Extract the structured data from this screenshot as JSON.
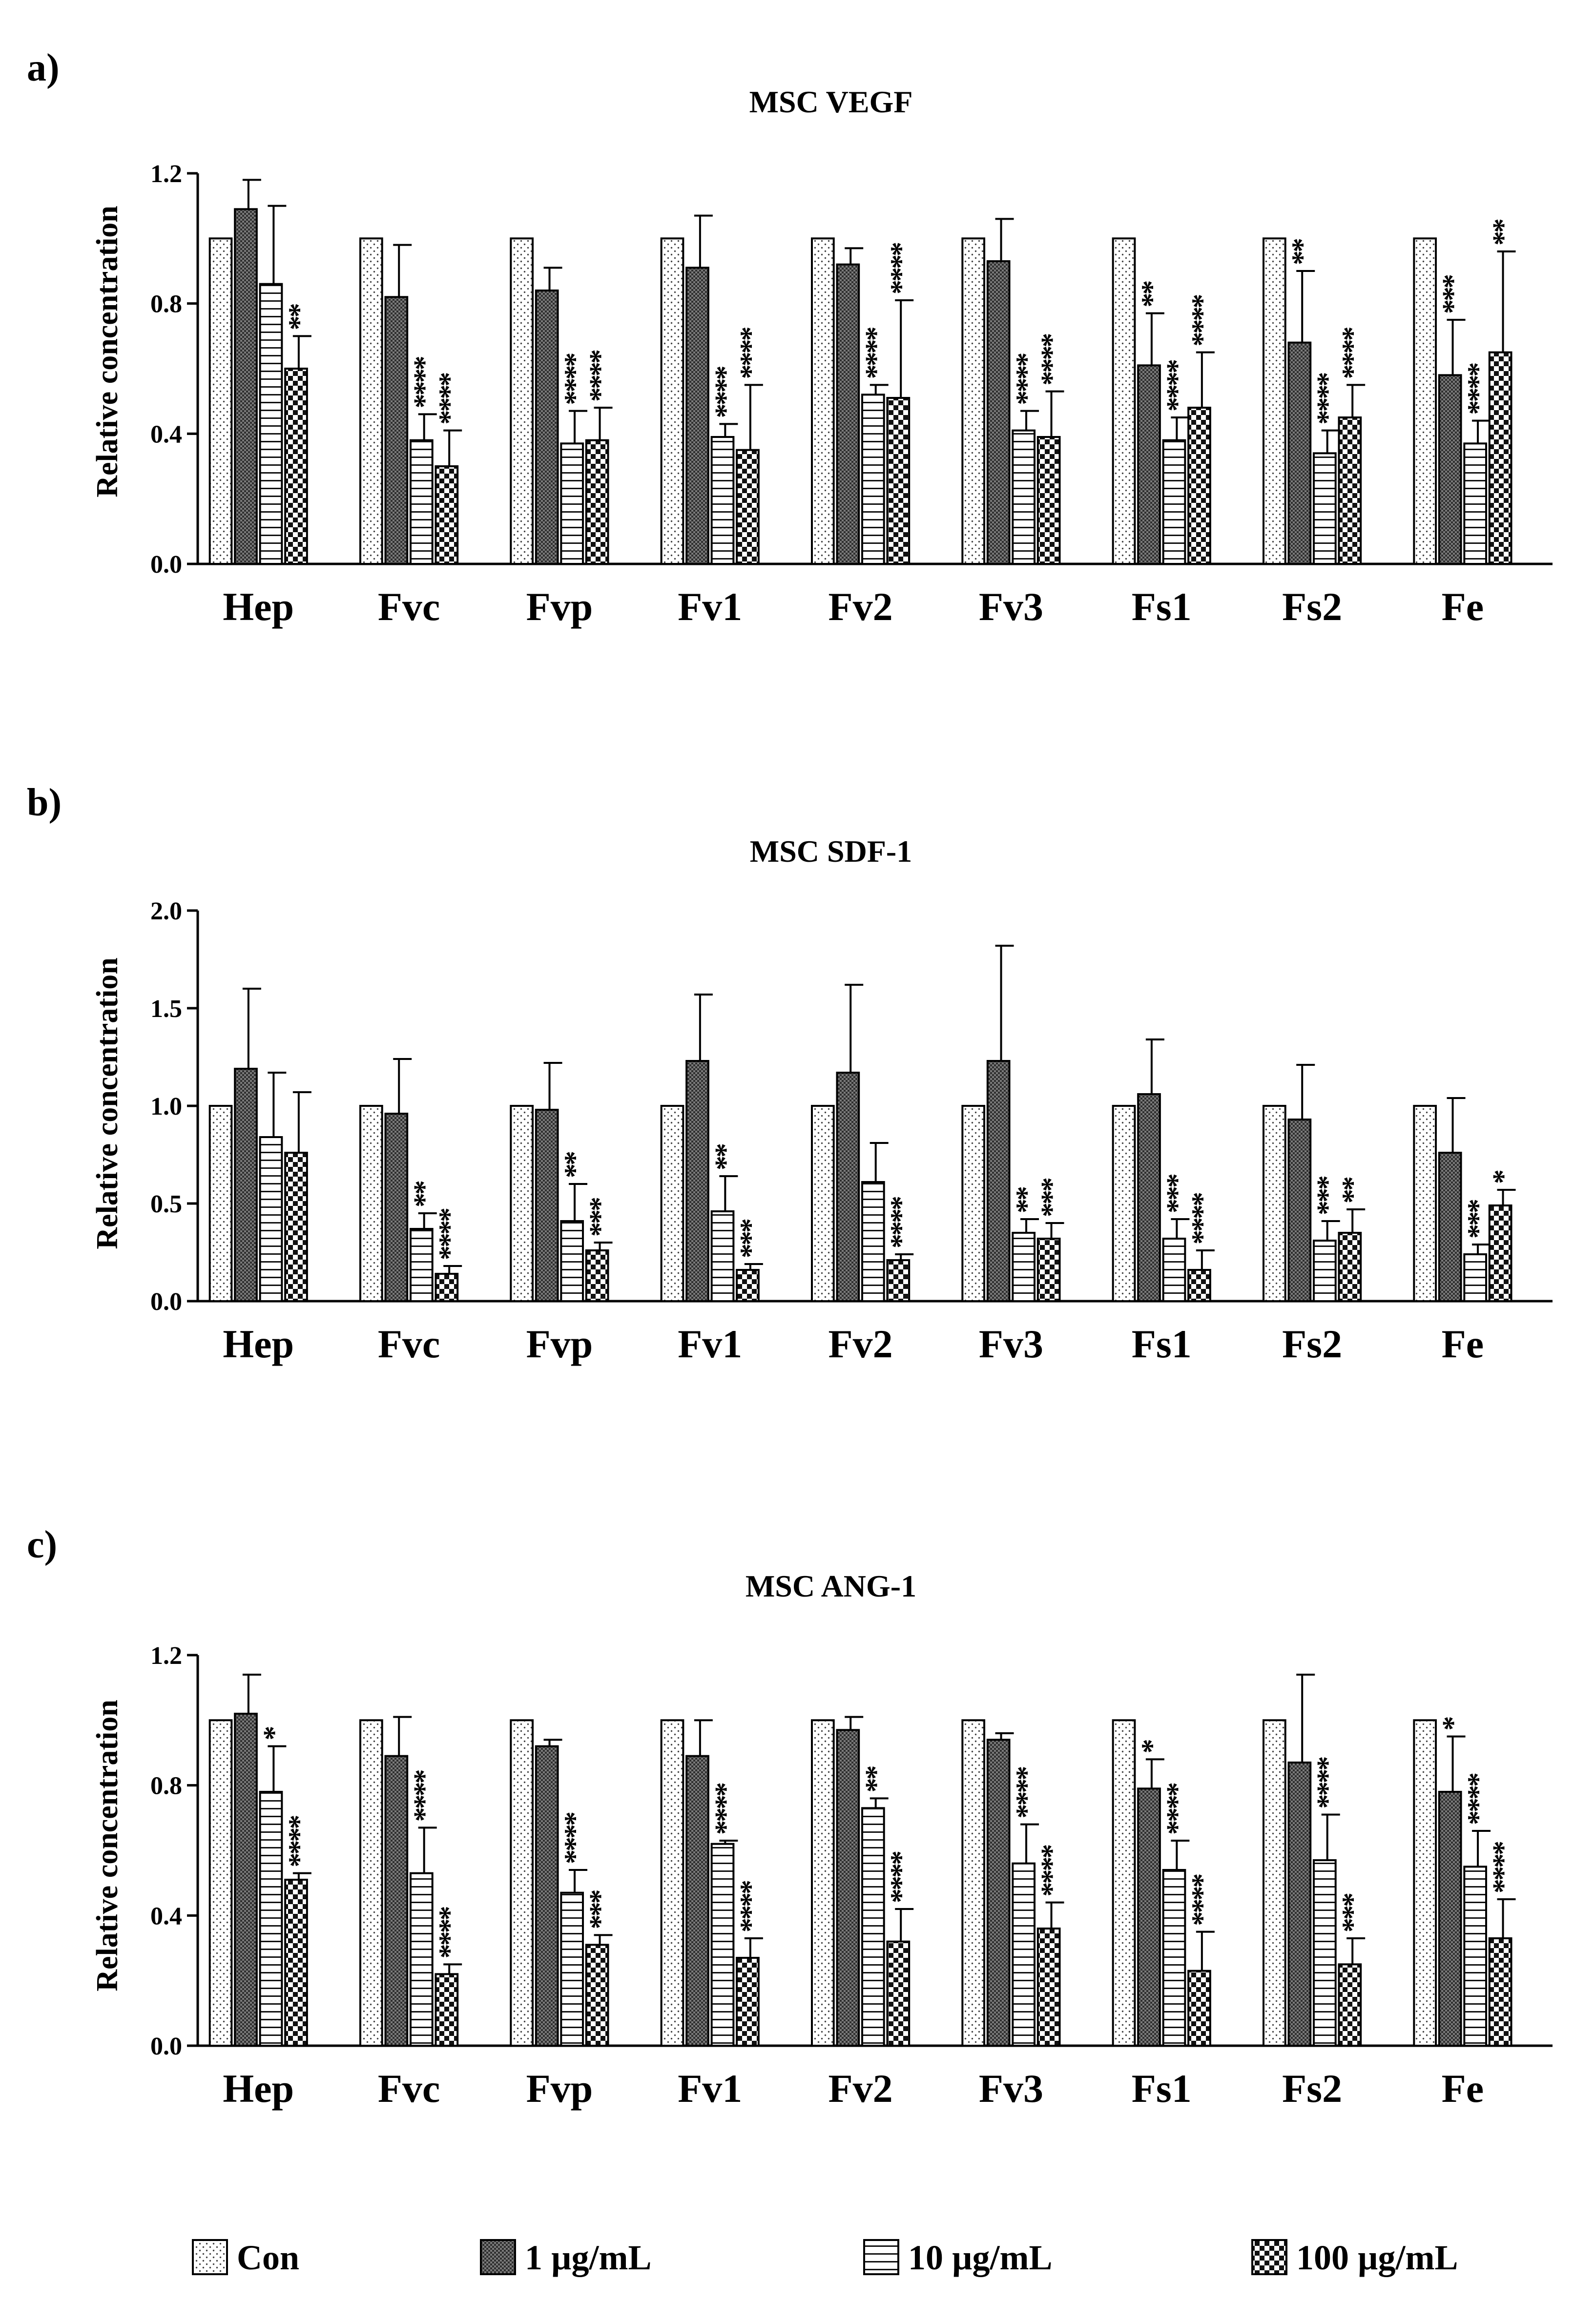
{
  "figure_title": "",
  "legend": [
    {
      "label": "Con",
      "pattern": "dots"
    },
    {
      "label": "1 µg/mL",
      "pattern": "dense"
    },
    {
      "label": "10 µg/mL",
      "pattern": "hlines"
    },
    {
      "label": "100 µg/mL",
      "pattern": "checker"
    }
  ],
  "chart_data": [
    {
      "type": "bar",
      "panel_label": "a)",
      "title": "MSC VEGF",
      "ylabel": "Relative concentration",
      "xlabel": "",
      "ylim": [
        0,
        1.2
      ],
      "yticks": [
        "0.0",
        "0.4",
        "0.8",
        "1.2"
      ],
      "categories": [
        "Hep",
        "Fvc",
        "Fvp",
        "Fv1",
        "Fv2",
        "Fv3",
        "Fs1",
        "Fs2",
        "Fe"
      ],
      "series": [
        {
          "name": "Con",
          "values": [
            1,
            1,
            1,
            1,
            1,
            1,
            1,
            1,
            1
          ],
          "errors": [
            0,
            0,
            0,
            0,
            0,
            0,
            0,
            0,
            0
          ],
          "sig": [
            "",
            "",
            "",
            "",
            "",
            "",
            "",
            "",
            ""
          ]
        },
        {
          "name": "1 µg/mL",
          "values": [
            1.09,
            0.82,
            0.84,
            0.91,
            0.92,
            0.93,
            0.61,
            0.68,
            0.58
          ],
          "errors": [
            0.09,
            0.16,
            0.07,
            0.16,
            0.05,
            0.13,
            0.16,
            0.22,
            0.17
          ],
          "sig": [
            "",
            "",
            "",
            "",
            "",
            "",
            "**",
            "**",
            "***"
          ]
        },
        {
          "name": "10 µg/mL",
          "values": [
            0.86,
            0.38,
            0.37,
            0.39,
            0.52,
            0.41,
            0.38,
            0.34,
            0.37
          ],
          "errors": [
            0.24,
            0.08,
            0.1,
            0.04,
            0.03,
            0.06,
            0.07,
            0.07,
            0.07
          ],
          "sig": [
            "",
            "****",
            "****",
            "****",
            "****",
            "****",
            "****",
            "****",
            "****"
          ]
        },
        {
          "name": "100 µg/mL",
          "values": [
            0.6,
            0.3,
            0.38,
            0.35,
            0.51,
            0.39,
            0.48,
            0.45,
            0.65
          ],
          "errors": [
            0.1,
            0.11,
            0.1,
            0.2,
            0.3,
            0.14,
            0.17,
            0.1,
            0.31
          ],
          "sig": [
            "**",
            "****",
            "****",
            "****",
            "****",
            "****",
            "****",
            "****",
            "**"
          ]
        }
      ]
    },
    {
      "type": "bar",
      "panel_label": "b)",
      "title": "MSC SDF-1",
      "ylabel": "Relative concentration",
      "xlabel": "",
      "ylim": [
        0,
        2.0
      ],
      "yticks": [
        "0.0",
        "0.5",
        "1.0",
        "1.5",
        "2.0"
      ],
      "categories": [
        "Hep",
        "Fvc",
        "Fvp",
        "Fv1",
        "Fv2",
        "Fv3",
        "Fs1",
        "Fs2",
        "Fe"
      ],
      "series": [
        {
          "name": "Con",
          "values": [
            1,
            1,
            1,
            1,
            1,
            1,
            1,
            1,
            1
          ],
          "errors": [
            0,
            0,
            0,
            0,
            0,
            0,
            0,
            0,
            0
          ],
          "sig": [
            "",
            "",
            "",
            "",
            "",
            "",
            "",
            "",
            ""
          ]
        },
        {
          "name": "1 µg/mL",
          "values": [
            1.19,
            0.96,
            0.98,
            1.23,
            1.17,
            1.23,
            1.06,
            0.93,
            0.76
          ],
          "errors": [
            0.41,
            0.28,
            0.24,
            0.34,
            0.45,
            0.59,
            0.28,
            0.28,
            0.28
          ],
          "sig": [
            "",
            "",
            "",
            "",
            "",
            "",
            "",
            "",
            ""
          ]
        },
        {
          "name": "10 µg/mL",
          "values": [
            0.84,
            0.37,
            0.41,
            0.46,
            0.61,
            0.35,
            0.32,
            0.31,
            0.24
          ],
          "errors": [
            0.33,
            0.08,
            0.19,
            0.18,
            0.2,
            0.07,
            0.1,
            0.1,
            0.05
          ],
          "sig": [
            "",
            "**",
            "**",
            "**",
            "",
            "**",
            "***",
            "***",
            "***"
          ]
        },
        {
          "name": "100 µg/mL",
          "values": [
            0.76,
            0.14,
            0.26,
            0.16,
            0.21,
            0.32,
            0.16,
            0.35,
            0.49
          ],
          "errors": [
            0.31,
            0.04,
            0.04,
            0.03,
            0.03,
            0.08,
            0.1,
            0.12,
            0.08
          ],
          "sig": [
            "",
            "****",
            "***",
            "***",
            "****",
            "***",
            "****",
            "**",
            "*"
          ]
        }
      ]
    },
    {
      "type": "bar",
      "panel_label": "c)",
      "title": "MSC ANG-1",
      "ylabel": "Relative concentration",
      "xlabel": "",
      "ylim": [
        0,
        1.2
      ],
      "yticks": [
        "0.0",
        "0.4",
        "0.8",
        "1.2"
      ],
      "categories": [
        "Hep",
        "Fvc",
        "Fvp",
        "Fv1",
        "Fv2",
        "Fv3",
        "Fs1",
        "Fs2",
        "Fe"
      ],
      "series": [
        {
          "name": "Con",
          "values": [
            1,
            1,
            1,
            1,
            1,
            1,
            1,
            1,
            1
          ],
          "errors": [
            0,
            0,
            0,
            0,
            0,
            0,
            0,
            0,
            0
          ],
          "sig": [
            "",
            "",
            "",
            "",
            "",
            "",
            "",
            "",
            ""
          ]
        },
        {
          "name": "1 µg/mL",
          "values": [
            1.02,
            0.89,
            0.92,
            0.89,
            0.97,
            0.94,
            0.79,
            0.87,
            0.78
          ],
          "errors": [
            0.12,
            0.12,
            0.02,
            0.11,
            0.04,
            0.02,
            0.09,
            0.27,
            0.17
          ],
          "sig": [
            "",
            "",
            "",
            "",
            "",
            "",
            "*",
            "",
            "*"
          ]
        },
        {
          "name": "10 µg/mL",
          "values": [
            0.78,
            0.53,
            0.47,
            0.62,
            0.73,
            0.56,
            0.54,
            0.57,
            0.55
          ],
          "errors": [
            0.14,
            0.14,
            0.07,
            0.01,
            0.03,
            0.12,
            0.09,
            0.14,
            0.11
          ],
          "sig": [
            "*",
            "****",
            "****",
            "****",
            "**",
            "****",
            "****",
            "****",
            "****"
          ]
        },
        {
          "name": "100 µg/mL",
          "values": [
            0.51,
            0.22,
            0.31,
            0.27,
            0.32,
            0.36,
            0.23,
            0.25,
            0.33
          ],
          "errors": [
            0.02,
            0.03,
            0.03,
            0.06,
            0.1,
            0.08,
            0.12,
            0.08,
            0.12
          ],
          "sig": [
            "****",
            "****",
            "***",
            "****",
            "****",
            "****",
            "****",
            "***",
            "****"
          ]
        }
      ]
    }
  ]
}
